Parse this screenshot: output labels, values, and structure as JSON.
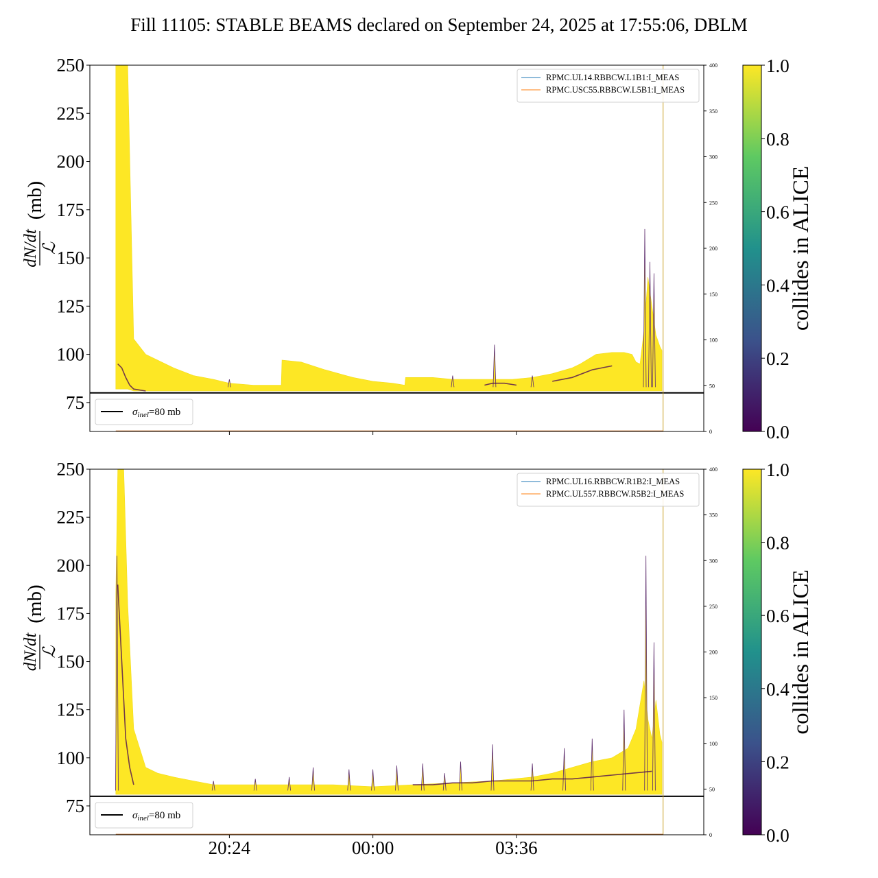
{
  "title": "Fill 11105: STABLE BEAMS declared on September 24, 2025 at 17:55:06, DBLM",
  "colormap": {
    "stops": [
      "#440154",
      "#3b528b",
      "#21918c",
      "#5ec962",
      "#fde725"
    ],
    "label": "collides in ALICE",
    "ticks": [
      "0.0",
      "0.2",
      "0.4",
      "0.6",
      "0.8",
      "1.0"
    ],
    "range": [
      0,
      1
    ]
  },
  "chart_data": [
    {
      "type": "area",
      "panel": "top",
      "ylabel": "dN/dt / ℒ (mb)",
      "ylim": [
        60,
        250
      ],
      "yticks": [
        "75",
        "100",
        "125",
        "150",
        "175",
        "200",
        "225",
        "250"
      ],
      "y2lim": [
        0,
        400
      ],
      "y2ticks": [
        "0",
        "50",
        "100",
        "150",
        "200",
        "250",
        "300",
        "350",
        "400"
      ],
      "xlim_hours": [
        16.9,
        8.3
      ],
      "xticks": [
        "20:24",
        "00:00",
        "03:36"
      ],
      "xtick_labels_visible": false,
      "reference_line": {
        "label": "σ",
        "label_sub": "inel",
        "label_suffix": "=80 mb",
        "value": 80
      },
      "legend": [
        "RPMC.UL14.RBBCW.L1B1:I_MEAS",
        "RPMC.USC55.RBBCW.L5B1:I_MEAS"
      ],
      "series_colors": [
        "#1f77b4",
        "#ff7f0e"
      ],
      "envelope": {
        "x_hours": [
          17.55,
          17.6,
          17.7,
          17.85,
          18.0,
          18.3,
          18.6,
          19.0,
          19.5,
          20.0,
          20.4,
          21.0,
          21.7,
          21.72,
          22.2,
          22.8,
          23.5,
          0.0,
          0.5,
          0.8,
          0.82,
          1.5,
          2.0,
          2.5,
          3.0,
          3.5,
          4.0,
          4.5,
          5.0,
          5.2,
          5.6,
          6.0,
          6.3,
          6.5,
          6.6,
          6.7,
          6.8,
          6.9,
          7.0,
          7.1,
          7.2,
          7.25
        ],
        "upper": [
          250,
          250,
          250,
          250,
          108,
          100,
          97,
          93,
          89,
          87,
          85,
          84,
          84,
          97,
          96,
          92,
          88,
          86,
          85,
          84,
          88,
          88,
          87,
          87,
          87,
          87,
          88,
          90,
          93,
          95,
          100,
          101,
          101,
          100,
          96,
          95,
          112,
          140,
          125,
          110,
          104,
          102
        ],
        "lower": [
          82,
          82,
          82,
          82,
          81,
          81,
          81,
          81,
          81,
          81,
          81,
          81,
          81,
          81,
          81,
          81,
          81,
          81,
          81,
          81,
          81,
          81,
          81,
          81,
          81,
          81,
          81,
          81,
          81,
          81,
          81,
          81,
          81,
          81,
          81,
          81,
          81,
          81,
          81,
          81,
          81,
          81
        ]
      },
      "spikes": [
        {
          "x_hours": 20.4,
          "y": 87
        },
        {
          "x_hours": 2.0,
          "y": 89
        },
        {
          "x_hours": 3.05,
          "y": 105
        },
        {
          "x_hours": 4.0,
          "y": 89
        },
        {
          "x_hours": 6.82,
          "y": 165
        },
        {
          "x_hours": 6.95,
          "y": 148
        },
        {
          "x_hours": 7.05,
          "y": 142
        }
      ],
      "dark_traces": [
        {
          "x_hours": [
            17.6,
            17.7,
            17.8,
            17.9,
            18.0,
            18.3
          ],
          "y": [
            95,
            93,
            88,
            84,
            82,
            81
          ]
        },
        {
          "x_hours": [
            2.8,
            3.0,
            3.3,
            3.6
          ],
          "y": [
            84,
            85,
            85,
            84
          ]
        },
        {
          "x_hours": [
            4.5,
            5.0,
            5.5,
            6.0
          ],
          "y": [
            86,
            88,
            92,
            94
          ]
        }
      ],
      "vline_hours": 7.28
    },
    {
      "type": "area",
      "panel": "bottom",
      "ylabel": "dN/dt / ℒ (mb)",
      "ylim": [
        60,
        250
      ],
      "yticks": [
        "75",
        "100",
        "125",
        "150",
        "175",
        "200",
        "225",
        "250"
      ],
      "y2lim": [
        0,
        400
      ],
      "y2ticks": [
        "0",
        "50",
        "100",
        "150",
        "200",
        "250",
        "300",
        "350",
        "400"
      ],
      "xlim_hours": [
        16.9,
        8.3
      ],
      "xticks": [
        "20:24",
        "00:00",
        "03:36"
      ],
      "xtick_labels_visible": true,
      "reference_line": {
        "label": "σ",
        "label_sub": "inel",
        "label_suffix": "=80 mb",
        "value": 80
      },
      "legend": [
        "RPMC.UL16.RBBCW.R1B2:I_MEAS",
        "RPMC.UL557.RBBCW.R5B2:I_MEAS"
      ],
      "series_colors": [
        "#1f77b4",
        "#ff7f0e"
      ],
      "envelope": {
        "x_hours": [
          17.55,
          17.6,
          17.7,
          17.75,
          17.85,
          18.0,
          18.3,
          18.6,
          19.0,
          19.5,
          20.0,
          21.0,
          22.0,
          23.0,
          0.0,
          1.0,
          2.0,
          3.0,
          4.0,
          4.5,
          5.0,
          5.5,
          6.0,
          6.4,
          6.6,
          6.8,
          6.9,
          7.0,
          7.1,
          7.2,
          7.25
        ],
        "upper": [
          185,
          250,
          250,
          250,
          180,
          115,
          95,
          92,
          90,
          88,
          86,
          86,
          86,
          86,
          85,
          86,
          87,
          88,
          90,
          92,
          95,
          98,
          100,
          105,
          115,
          140,
          120,
          110,
          130,
          112,
          108
        ],
        "lower": [
          81,
          81,
          81,
          81,
          81,
          81,
          81,
          81,
          81,
          81,
          81,
          81,
          81,
          81,
          81,
          81,
          81,
          81,
          81,
          81,
          81,
          81,
          81,
          81,
          81,
          81,
          81,
          81,
          81,
          81,
          81
        ]
      },
      "spikes": [
        {
          "x_hours": 17.58,
          "y": 205
        },
        {
          "x_hours": 20.0,
          "y": 88
        },
        {
          "x_hours": 21.05,
          "y": 89
        },
        {
          "x_hours": 21.9,
          "y": 90
        },
        {
          "x_hours": 22.5,
          "y": 95
        },
        {
          "x_hours": 23.4,
          "y": 94
        },
        {
          "x_hours": 0.0,
          "y": 94
        },
        {
          "x_hours": 0.6,
          "y": 96
        },
        {
          "x_hours": 1.25,
          "y": 97
        },
        {
          "x_hours": 1.8,
          "y": 92
        },
        {
          "x_hours": 2.2,
          "y": 98
        },
        {
          "x_hours": 3.0,
          "y": 107
        },
        {
          "x_hours": 4.0,
          "y": 97
        },
        {
          "x_hours": 4.8,
          "y": 105
        },
        {
          "x_hours": 5.5,
          "y": 110
        },
        {
          "x_hours": 6.3,
          "y": 125
        },
        {
          "x_hours": 6.85,
          "y": 205
        },
        {
          "x_hours": 7.05,
          "y": 160
        }
      ],
      "dark_traces": [
        {
          "x_hours": [
            17.6,
            17.7,
            17.8,
            17.9,
            18.0
          ],
          "y": [
            190,
            150,
            110,
            95,
            86
          ]
        },
        {
          "x_hours": [
            1.0,
            1.5,
            2.0,
            2.5,
            3.0,
            3.5,
            4.0,
            4.5,
            5.0,
            5.5,
            6.0,
            6.5,
            7.0
          ],
          "y": [
            86,
            86,
            87,
            87,
            88,
            88,
            88,
            89,
            89,
            90,
            91,
            92,
            93
          ]
        }
      ],
      "vline_hours": 7.28
    }
  ]
}
